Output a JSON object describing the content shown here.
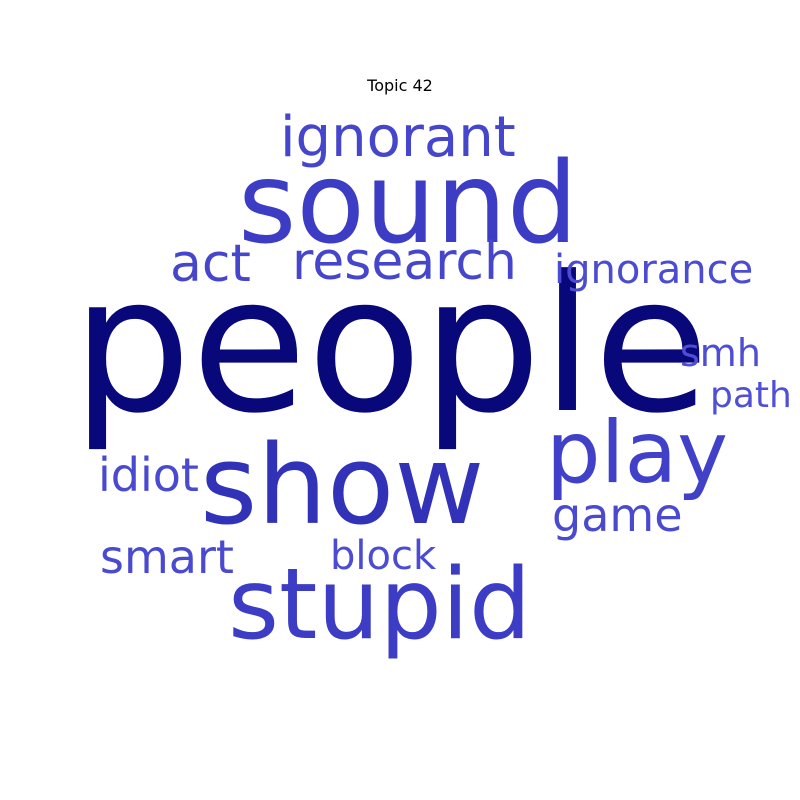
{
  "title": "Topic 42",
  "words": [
    {
      "key": "people",
      "text": "people",
      "weight": 1.0,
      "color": "#08087a"
    },
    {
      "key": "sound",
      "text": "sound",
      "weight": 0.58,
      "color": "#3c3cc4"
    },
    {
      "key": "show",
      "text": "show",
      "weight": 0.57,
      "color": "#3232b8"
    },
    {
      "key": "stupid",
      "text": "stupid",
      "weight": 0.51,
      "color": "#3c3cc4"
    },
    {
      "key": "play",
      "text": "play",
      "weight": 0.46,
      "color": "#4040c8"
    },
    {
      "key": "ignorant",
      "text": "ignorant",
      "weight": 0.31,
      "color": "#4646cc"
    },
    {
      "key": "research",
      "text": "research",
      "weight": 0.29,
      "color": "#4646cc"
    },
    {
      "key": "act",
      "text": "act",
      "weight": 0.29,
      "color": "#4646cc"
    },
    {
      "key": "game",
      "text": "game",
      "weight": 0.26,
      "color": "#4a4ad0"
    },
    {
      "key": "smart",
      "text": "smart",
      "weight": 0.26,
      "color": "#4a4ad0"
    },
    {
      "key": "idiot",
      "text": "idiot",
      "weight": 0.26,
      "color": "#4a4ad0"
    },
    {
      "key": "ignorance",
      "text": "ignorance",
      "weight": 0.22,
      "color": "#4c4cd2"
    },
    {
      "key": "block",
      "text": "block",
      "weight": 0.22,
      "color": "#4c4cd2"
    },
    {
      "key": "smh",
      "text": "smh",
      "weight": 0.2,
      "color": "#4e4ed4"
    },
    {
      "key": "path",
      "text": "path",
      "weight": 0.19,
      "color": "#5050d6"
    }
  ]
}
